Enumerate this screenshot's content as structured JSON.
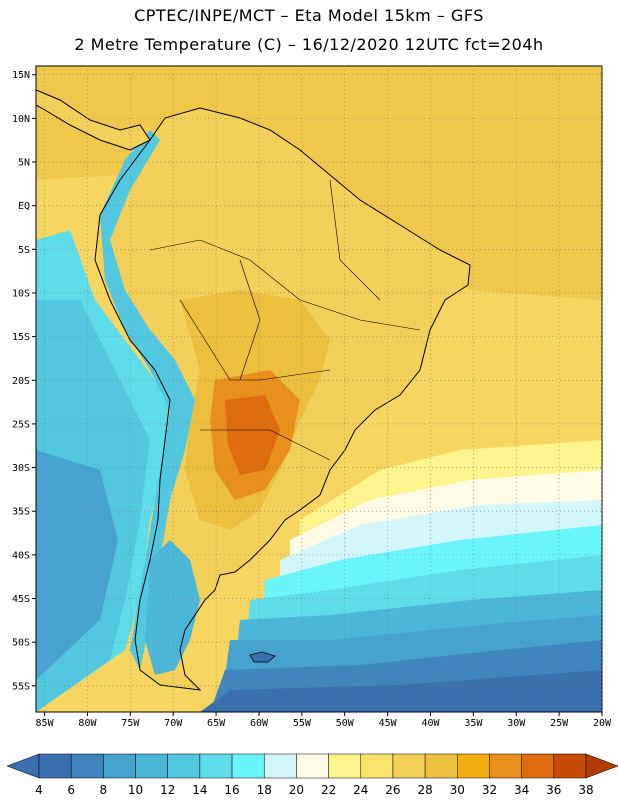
{
  "title_line1": "CPTEC/INPE/MCT –  Eta Model 15km – GFS",
  "title_line2": "2 Metre Temperature (C) – 16/12/2020 12UTC fct=204h",
  "map": {
    "lon_range": [
      -86,
      -20
    ],
    "lat_range": [
      -58,
      16
    ],
    "lon_ticks": [
      {
        "value": -85,
        "label": "85W"
      },
      {
        "value": -80,
        "label": "80W"
      },
      {
        "value": -75,
        "label": "75W"
      },
      {
        "value": -70,
        "label": "70W"
      },
      {
        "value": -65,
        "label": "65W"
      },
      {
        "value": -60,
        "label": "60W"
      },
      {
        "value": -55,
        "label": "55W"
      },
      {
        "value": -50,
        "label": "50W"
      },
      {
        "value": -45,
        "label": "45W"
      },
      {
        "value": -40,
        "label": "40W"
      },
      {
        "value": -35,
        "label": "35W"
      },
      {
        "value": -30,
        "label": "30W"
      },
      {
        "value": -25,
        "label": "25W"
      },
      {
        "value": -20,
        "label": "20W"
      }
    ],
    "lat_ticks": [
      {
        "value": 15,
        "label": "15N"
      },
      {
        "value": 10,
        "label": "10N"
      },
      {
        "value": 5,
        "label": "5N"
      },
      {
        "value": 0,
        "label": "EQ"
      },
      {
        "value": -5,
        "label": "5S"
      },
      {
        "value": -10,
        "label": "10S"
      },
      {
        "value": -15,
        "label": "15S"
      },
      {
        "value": -20,
        "label": "20S"
      },
      {
        "value": -25,
        "label": "25S"
      },
      {
        "value": -30,
        "label": "30S"
      },
      {
        "value": -35,
        "label": "35S"
      },
      {
        "value": -40,
        "label": "40S"
      },
      {
        "value": -45,
        "label": "45S"
      },
      {
        "value": -50,
        "label": "50S"
      },
      {
        "value": -55,
        "label": "55S"
      }
    ],
    "grid": "dotted"
  },
  "colorbar": {
    "labels": [
      "4",
      "6",
      "8",
      "10",
      "12",
      "14",
      "16",
      "18",
      "20",
      "22",
      "24",
      "26",
      "28",
      "30",
      "32",
      "34",
      "36",
      "38"
    ],
    "colors": [
      "#3a6fb0",
      "#3f86c0",
      "#46a3cf",
      "#4cb6d9",
      "#52c7e0",
      "#5fdcea",
      "#6af4fb",
      "#d3f6fb",
      "#fefbe6",
      "#fdf48e",
      "#f9e36a",
      "#f2d05a",
      "#edbf3f",
      "#f3ad0f",
      "#e98f1b",
      "#de6c0e",
      "#c84a06"
    ],
    "low_arrow_color": "#3a6fb0",
    "high_arrow_color": "#b23a05"
  }
}
